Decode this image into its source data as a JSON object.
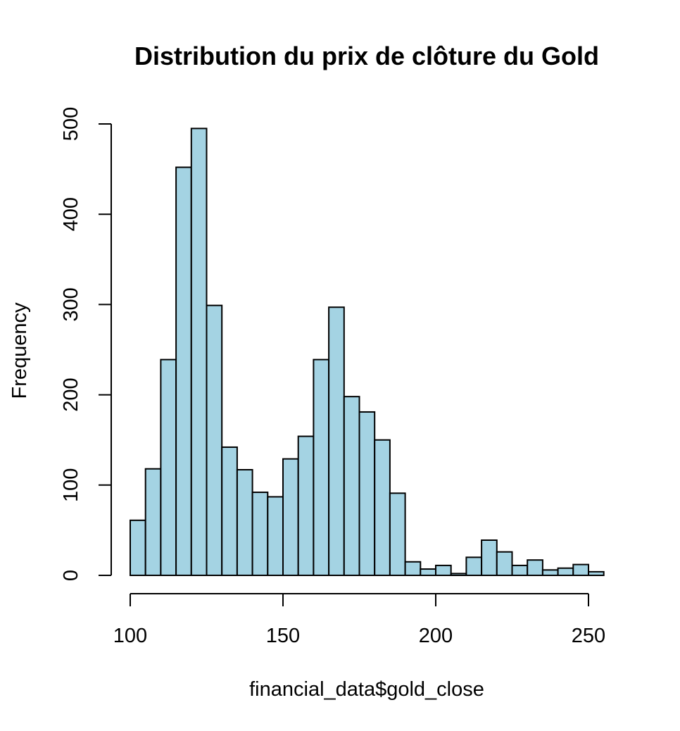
{
  "chart_data": {
    "type": "bar",
    "subtype": "histogram",
    "title": "Distribution du prix de clôture du Gold",
    "xlabel": "financial_data$gold_close",
    "ylabel": "Frequency",
    "bin_width": 5,
    "bins": [
      {
        "start": 100,
        "end": 105,
        "value": 61
      },
      {
        "start": 105,
        "end": 110,
        "value": 118
      },
      {
        "start": 110,
        "end": 115,
        "value": 239
      },
      {
        "start": 115,
        "end": 120,
        "value": 452
      },
      {
        "start": 120,
        "end": 125,
        "value": 495
      },
      {
        "start": 125,
        "end": 130,
        "value": 299
      },
      {
        "start": 130,
        "end": 135,
        "value": 142
      },
      {
        "start": 135,
        "end": 140,
        "value": 117
      },
      {
        "start": 140,
        "end": 145,
        "value": 92
      },
      {
        "start": 145,
        "end": 150,
        "value": 87
      },
      {
        "start": 150,
        "end": 155,
        "value": 129
      },
      {
        "start": 155,
        "end": 160,
        "value": 154
      },
      {
        "start": 160,
        "end": 165,
        "value": 239
      },
      {
        "start": 165,
        "end": 170,
        "value": 297
      },
      {
        "start": 170,
        "end": 175,
        "value": 198
      },
      {
        "start": 175,
        "end": 180,
        "value": 181
      },
      {
        "start": 180,
        "end": 185,
        "value": 150
      },
      {
        "start": 185,
        "end": 190,
        "value": 91
      },
      {
        "start": 190,
        "end": 195,
        "value": 15
      },
      {
        "start": 195,
        "end": 200,
        "value": 7
      },
      {
        "start": 200,
        "end": 205,
        "value": 11
      },
      {
        "start": 205,
        "end": 210,
        "value": 2
      },
      {
        "start": 210,
        "end": 215,
        "value": 20
      },
      {
        "start": 215,
        "end": 220,
        "value": 39
      },
      {
        "start": 220,
        "end": 225,
        "value": 26
      },
      {
        "start": 225,
        "end": 230,
        "value": 11
      },
      {
        "start": 230,
        "end": 235,
        "value": 17
      },
      {
        "start": 235,
        "end": 240,
        "value": 6
      },
      {
        "start": 240,
        "end": 245,
        "value": 8
      },
      {
        "start": 245,
        "end": 250,
        "value": 12
      },
      {
        "start": 250,
        "end": 255,
        "value": 4
      }
    ],
    "x_ticks": [
      "100",
      "150",
      "200",
      "250"
    ],
    "y_ticks": [
      "0",
      "100",
      "200",
      "300",
      "400",
      "500"
    ],
    "xlim": [
      100,
      250
    ],
    "ylim": [
      0,
      500
    ],
    "bar_color": "#A4D3E3",
    "bar_border_color": "#000000",
    "grid": false,
    "legend": "none"
  }
}
